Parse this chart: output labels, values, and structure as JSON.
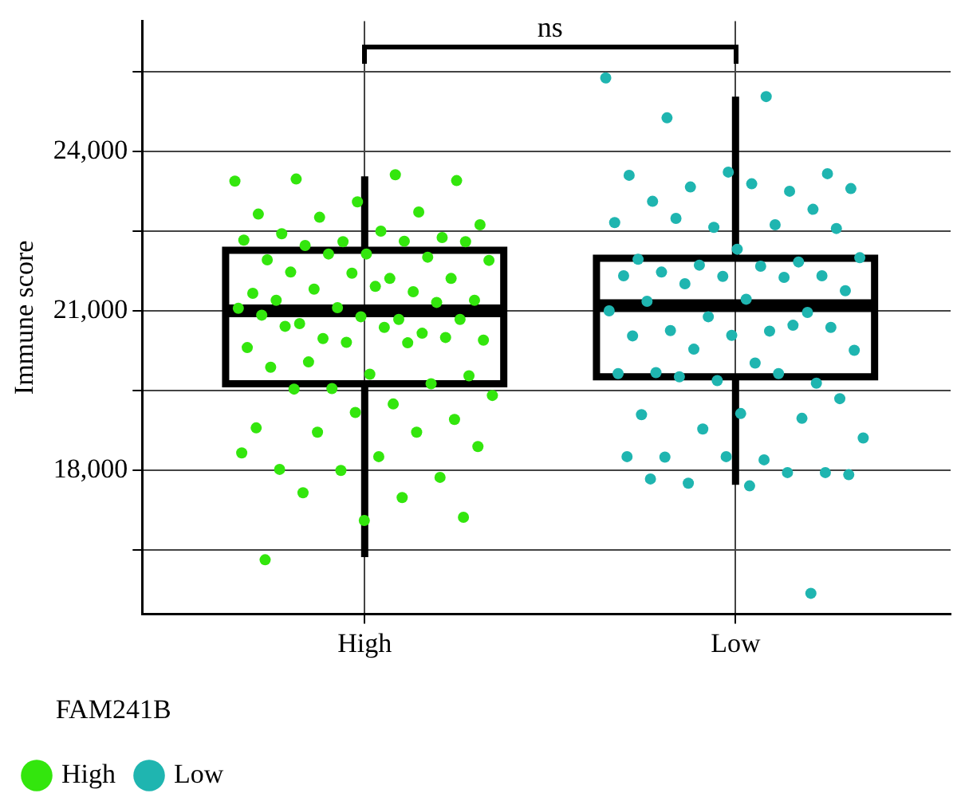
{
  "chart_data": {
    "type": "box",
    "ylabel": "Immune score",
    "legend_title": "FAM241B",
    "legend": "bottom left",
    "grid": true,
    "marker": "circle",
    "categories": [
      "High",
      "Low"
    ],
    "ylim": [
      15300,
      26450
    ],
    "yticks": [
      {
        "value": 16500,
        "label": null
      },
      {
        "value": 18000,
        "label": "18,000"
      },
      {
        "value": 19500,
        "label": null
      },
      {
        "value": 21000,
        "label": "21,000"
      },
      {
        "value": 22500,
        "label": null
      },
      {
        "value": 24000,
        "label": "24,000"
      },
      {
        "value": 25500,
        "label": null
      }
    ],
    "boxes": [
      {
        "low": 16370,
        "q1": 19630,
        "median": 21000,
        "q3": 22140,
        "high": 23530
      },
      {
        "low": 17730,
        "q1": 19760,
        "median": 21100,
        "q3": 21990,
        "high": 25030
      }
    ],
    "annotations": [
      "ns"
    ],
    "series": [
      {
        "name": "High",
        "type": "scatter",
        "color": "#33e60d",
        "x": [
          "High",
          "High",
          "High",
          "High",
          "High",
          "High",
          "High",
          "High",
          "High",
          "High",
          "High",
          "High",
          "High",
          "High",
          "High",
          "High",
          "High",
          "High",
          "High",
          "High",
          "High",
          "High",
          "High",
          "High",
          "High",
          "High",
          "High",
          "High",
          "High",
          "High",
          "High",
          "High",
          "High",
          "High",
          "High",
          "High",
          "High",
          "High",
          "High",
          "High",
          "High",
          "High",
          "High",
          "High",
          "High",
          "High",
          "High",
          "High",
          "High",
          "High",
          "High",
          "High",
          "High",
          "High",
          "High",
          "High",
          "High",
          "High",
          "High",
          "High",
          "High",
          "High",
          "High",
          "High",
          "High",
          "High",
          "High",
          "High",
          "High",
          "High",
          "High",
          "High",
          "High",
          "High"
        ],
        "values": [
          23440,
          23560,
          23480,
          23450,
          23050,
          22820,
          22860,
          22760,
          22620,
          22500,
          22450,
          22380,
          22300,
          22330,
          22310,
          22230,
          22300,
          22070,
          21960,
          22010,
          22070,
          21950,
          21610,
          21730,
          21610,
          21710,
          21330,
          21360,
          21410,
          21200,
          21460,
          21200,
          21160,
          21060,
          21050,
          20840,
          20760,
          20840,
          20890,
          20920,
          20580,
          20480,
          20450,
          20690,
          20710,
          20500,
          20410,
          20310,
          20400,
          20040,
          19780,
          19810,
          19940,
          19630,
          19540,
          19410,
          19250,
          19530,
          18960,
          19090,
          18800,
          18720,
          18720,
          18450,
          18260,
          18020,
          17870,
          18000,
          18330,
          17490,
          17580,
          17120,
          17060,
          16320
        ]
      },
      {
        "name": "Low",
        "type": "scatter",
        "color": "#1fb5b0",
        "x": [
          "Low",
          "Low",
          "Low",
          "Low",
          "Low",
          "Low",
          "Low",
          "Low",
          "Low",
          "Low",
          "Low",
          "Low",
          "Low",
          "Low",
          "Low",
          "Low",
          "Low",
          "Low",
          "Low",
          "Low",
          "Low",
          "Low",
          "Low",
          "Low",
          "Low",
          "Low",
          "Low",
          "Low",
          "Low",
          "Low",
          "Low",
          "Low",
          "Low",
          "Low",
          "Low",
          "Low",
          "Low",
          "Low",
          "Low",
          "Low",
          "Low",
          "Low",
          "Low",
          "Low",
          "Low",
          "Low",
          "Low",
          "Low",
          "Low",
          "Low",
          "Low",
          "Low",
          "Low",
          "Low",
          "Low",
          "Low",
          "Low",
          "Low",
          "Low",
          "Low",
          "Low",
          "Low",
          "Low",
          "Low",
          "Low",
          "Low",
          "Low"
        ],
        "values": [
          25380,
          25030,
          24630,
          23580,
          23610,
          23550,
          23250,
          23330,
          23300,
          23390,
          23060,
          22910,
          22570,
          22660,
          22620,
          22740,
          22550,
          22160,
          21970,
          21920,
          21860,
          22000,
          21840,
          21730,
          21660,
          21650,
          21660,
          21630,
          21510,
          21380,
          21220,
          21180,
          20970,
          20890,
          21000,
          20620,
          20630,
          20690,
          20540,
          20530,
          20730,
          20280,
          20260,
          20020,
          19840,
          19640,
          19690,
          19820,
          19820,
          19760,
          19350,
          19070,
          19050,
          18980,
          18780,
          18610,
          18200,
          18250,
          17960,
          18260,
          18260,
          17960,
          17760,
          17920,
          17710,
          17840,
          15690
        ]
      }
    ]
  }
}
